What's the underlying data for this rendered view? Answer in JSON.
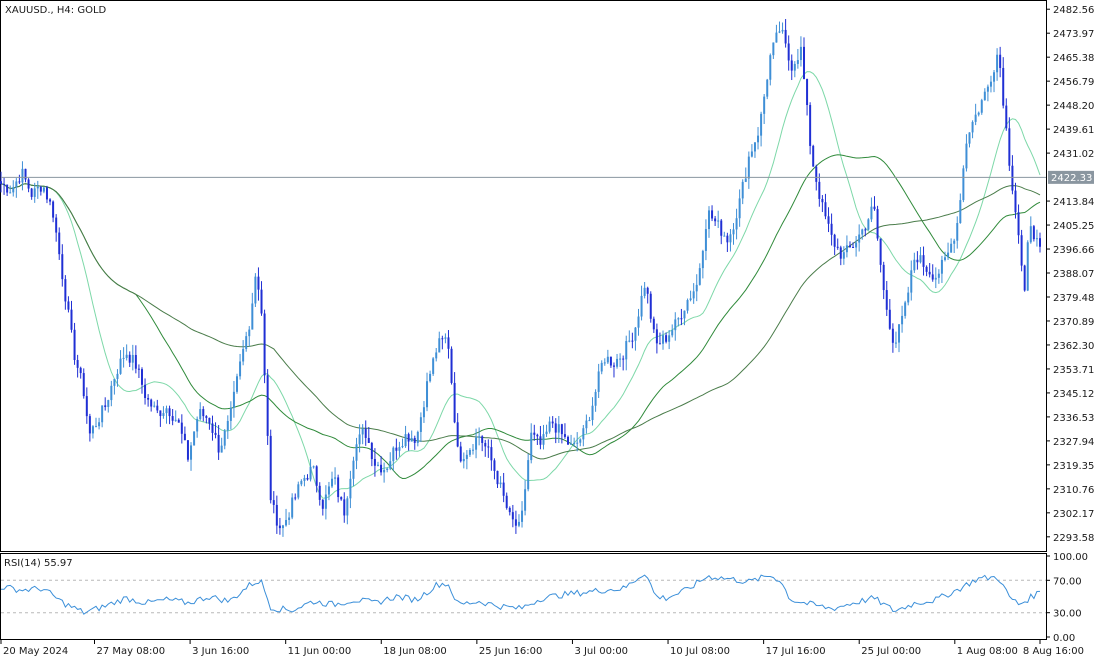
{
  "chart_data": {
    "type": "candlestick",
    "symbol_label": "XAUUSD., H4:  GOLD",
    "price_axis": {
      "ticks": [
        "2482.56",
        "2473.97",
        "2465.38",
        "2456.79",
        "2448.20",
        "2439.61",
        "2431.02",
        "2413.84",
        "2405.25",
        "2396.66",
        "2388.07",
        "2379.48",
        "2370.89",
        "2362.30",
        "2353.71",
        "2345.12",
        "2336.53",
        "2327.94",
        "2319.35",
        "2310.76",
        "2302.17",
        "2293.58"
      ],
      "range": [
        2288.5,
        2485.5
      ]
    },
    "current_price": {
      "label": "2422.33",
      "value": 2422.33
    },
    "time_axis": {
      "labels": [
        "20 May 2024",
        "27 May 08:00",
        "3 Jun 16:00",
        "11 Jun 00:00",
        "18 Jun 08:00",
        "25 Jun 16:00",
        "3 Jul 00:00",
        "10 Jul 08:00",
        "17 Jul 16:00",
        "25 Jul 00:00",
        "1 Aug 08:00",
        "8 Aug 16:00"
      ],
      "label_x_fraction": [
        0.0,
        0.09,
        0.182,
        0.274,
        0.366,
        0.458,
        0.55,
        0.642,
        0.734,
        0.826,
        0.918,
        1.0
      ]
    },
    "close_path": [
      [
        0,
        2420
      ],
      [
        0.01,
        2418
      ],
      [
        0.02,
        2424
      ],
      [
        0.03,
        2416
      ],
      [
        0.04,
        2420
      ],
      [
        0.05,
        2410
      ],
      [
        0.06,
        2385
      ],
      [
        0.07,
        2360
      ],
      [
        0.08,
        2345
      ],
      [
        0.085,
        2330
      ],
      [
        0.1,
        2340
      ],
      [
        0.11,
        2352
      ],
      [
        0.12,
        2360
      ],
      [
        0.13,
        2355
      ],
      [
        0.14,
        2343
      ],
      [
        0.15,
        2338
      ],
      [
        0.16,
        2340
      ],
      [
        0.17,
        2335
      ],
      [
        0.18,
        2322
      ],
      [
        0.19,
        2338
      ],
      [
        0.2,
        2336
      ],
      [
        0.21,
        2325
      ],
      [
        0.22,
        2335
      ],
      [
        0.23,
        2355
      ],
      [
        0.24,
        2372
      ],
      [
        0.245,
        2388
      ],
      [
        0.25,
        2380
      ],
      [
        0.255,
        2340
      ],
      [
        0.26,
        2305
      ],
      [
        0.27,
        2296
      ],
      [
        0.28,
        2305
      ],
      [
        0.29,
        2314
      ],
      [
        0.3,
        2318
      ],
      [
        0.31,
        2305
      ],
      [
        0.32,
        2315
      ],
      [
        0.33,
        2302
      ],
      [
        0.34,
        2325
      ],
      [
        0.35,
        2332
      ],
      [
        0.36,
        2320
      ],
      [
        0.37,
        2318
      ],
      [
        0.38,
        2326
      ],
      [
        0.39,
        2330
      ],
      [
        0.4,
        2329
      ],
      [
        0.41,
        2348
      ],
      [
        0.42,
        2362
      ],
      [
        0.43,
        2365
      ],
      [
        0.44,
        2322
      ],
      [
        0.45,
        2325
      ],
      [
        0.46,
        2330
      ],
      [
        0.47,
        2323
      ],
      [
        0.48,
        2312
      ],
      [
        0.49,
        2300
      ],
      [
        0.5,
        2296
      ],
      [
        0.51,
        2330
      ],
      [
        0.52,
        2326
      ],
      [
        0.53,
        2335
      ],
      [
        0.54,
        2330
      ],
      [
        0.55,
        2325
      ],
      [
        0.56,
        2330
      ],
      [
        0.57,
        2342
      ],
      [
        0.58,
        2358
      ],
      [
        0.59,
        2356
      ],
      [
        0.6,
        2360
      ],
      [
        0.61,
        2368
      ],
      [
        0.62,
        2385
      ],
      [
        0.63,
        2362
      ],
      [
        0.64,
        2365
      ],
      [
        0.65,
        2370
      ],
      [
        0.66,
        2378
      ],
      [
        0.67,
        2384
      ],
      [
        0.68,
        2410
      ],
      [
        0.69,
        2405
      ],
      [
        0.7,
        2400
      ],
      [
        0.71,
        2412
      ],
      [
        0.72,
        2430
      ],
      [
        0.73,
        2440
      ],
      [
        0.74,
        2465
      ],
      [
        0.75,
        2476
      ],
      [
        0.76,
        2462
      ],
      [
        0.77,
        2468
      ],
      [
        0.78,
        2430
      ],
      [
        0.79,
        2412
      ],
      [
        0.8,
        2400
      ],
      [
        0.81,
        2394
      ],
      [
        0.82,
        2398
      ],
      [
        0.83,
        2404
      ],
      [
        0.84,
        2412
      ],
      [
        0.85,
        2380
      ],
      [
        0.86,
        2362
      ],
      [
        0.87,
        2375
      ],
      [
        0.88,
        2395
      ],
      [
        0.89,
        2390
      ],
      [
        0.9,
        2387
      ],
      [
        0.91,
        2393
      ],
      [
        0.92,
        2405
      ],
      [
        0.93,
        2438
      ],
      [
        0.94,
        2446
      ],
      [
        0.95,
        2455
      ],
      [
        0.96,
        2468
      ],
      [
        0.97,
        2430
      ],
      [
        0.98,
        2400
      ],
      [
        0.985,
        2378
      ],
      [
        0.99,
        2408
      ],
      [
        1.0,
        2395
      ]
    ],
    "rsi": {
      "label": "RSI(14) 55.97",
      "ticks": [
        "100.00",
        "70.00",
        "30.00",
        "0.00"
      ],
      "levels": [
        70,
        30
      ],
      "path": [
        [
          0,
          62
        ],
        [
          0.02,
          58
        ],
        [
          0.04,
          60
        ],
        [
          0.06,
          42
        ],
        [
          0.08,
          30
        ],
        [
          0.1,
          38
        ],
        [
          0.12,
          48
        ],
        [
          0.14,
          42
        ],
        [
          0.16,
          46
        ],
        [
          0.18,
          42
        ],
        [
          0.2,
          50
        ],
        [
          0.22,
          44
        ],
        [
          0.24,
          65
        ],
        [
          0.25,
          70
        ],
        [
          0.26,
          36
        ],
        [
          0.28,
          33
        ],
        [
          0.3,
          44
        ],
        [
          0.32,
          40
        ],
        [
          0.34,
          46
        ],
        [
          0.36,
          42
        ],
        [
          0.38,
          50
        ],
        [
          0.4,
          46
        ],
        [
          0.42,
          65
        ],
        [
          0.43,
          66
        ],
        [
          0.44,
          40
        ],
        [
          0.46,
          44
        ],
        [
          0.48,
          38
        ],
        [
          0.5,
          35
        ],
        [
          0.52,
          48
        ],
        [
          0.54,
          52
        ],
        [
          0.56,
          55
        ],
        [
          0.58,
          58
        ],
        [
          0.6,
          60
        ],
        [
          0.62,
          80
        ],
        [
          0.63,
          50
        ],
        [
          0.64,
          48
        ],
        [
          0.66,
          58
        ],
        [
          0.68,
          75
        ],
        [
          0.7,
          72
        ],
        [
          0.72,
          68
        ],
        [
          0.74,
          76
        ],
        [
          0.75,
          70
        ],
        [
          0.76,
          46
        ],
        [
          0.78,
          40
        ],
        [
          0.8,
          35
        ],
        [
          0.82,
          42
        ],
        [
          0.84,
          48
        ],
        [
          0.86,
          32
        ],
        [
          0.88,
          42
        ],
        [
          0.9,
          46
        ],
        [
          0.92,
          58
        ],
        [
          0.94,
          72
        ],
        [
          0.96,
          74
        ],
        [
          0.97,
          50
        ],
        [
          0.98,
          40
        ],
        [
          1.0,
          56
        ]
      ]
    },
    "colors": {
      "bull": "#3f8fd6",
      "bear": "#1f2fd4",
      "ma_fast": "#7dd8a8",
      "ma_mid": "#2f8a3a",
      "ma_slow": "#4a7c4a",
      "rsi_line": "#3b8fd9",
      "price_line": "#8a96a0"
    }
  }
}
